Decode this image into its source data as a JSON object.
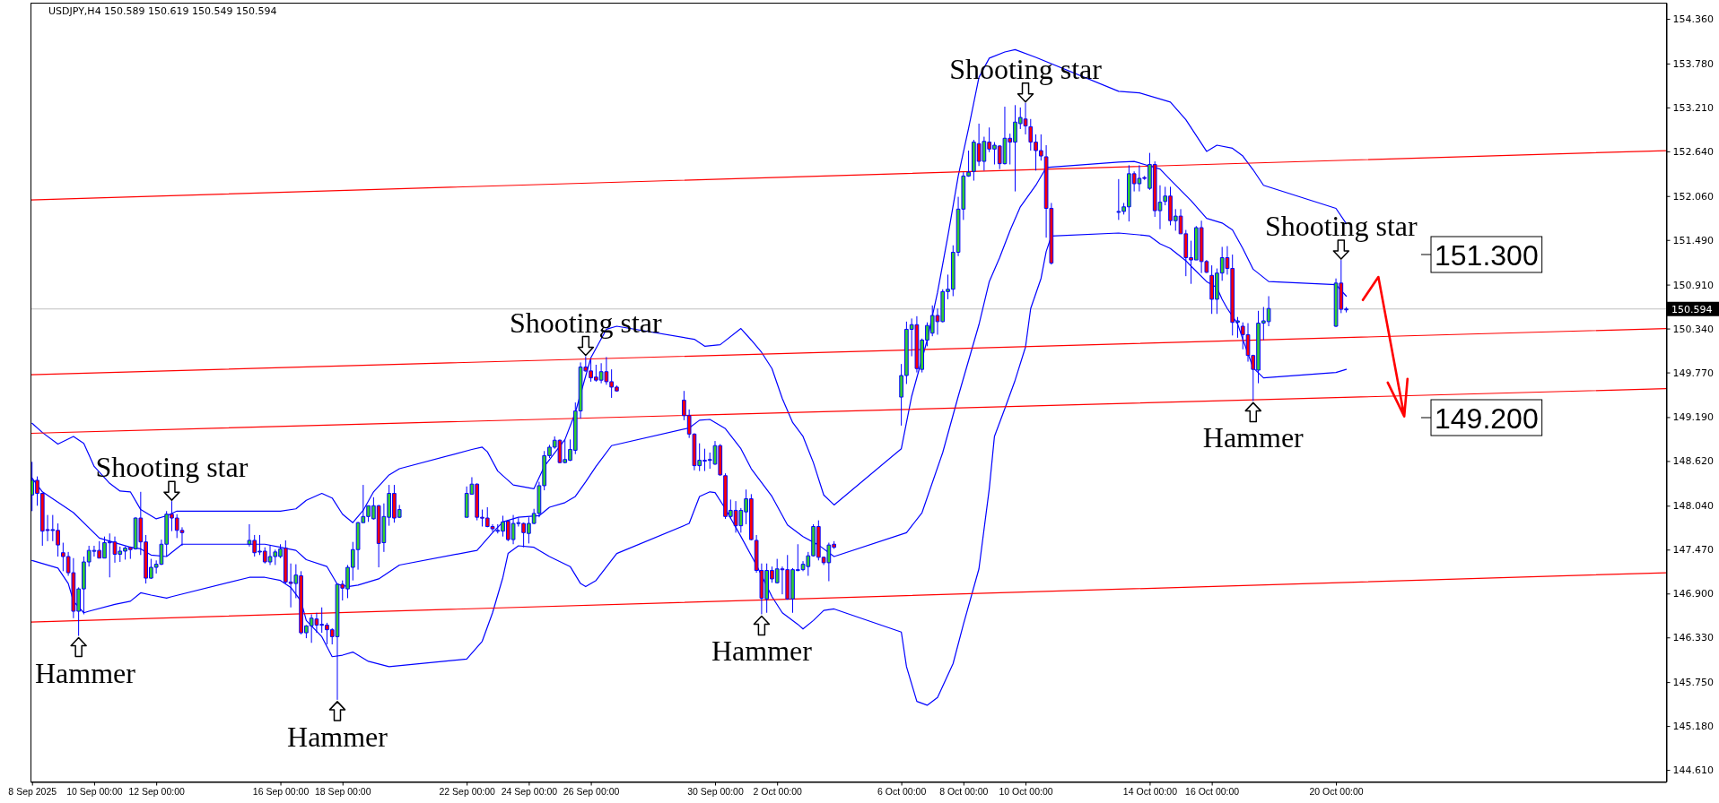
{
  "chart_data": {
    "type": "candlestick",
    "title": "USDJPY,H4 150.589 150.619 150.549 150.594",
    "color": "#0000ff",
    "x": [
      "2025-09-08T00:00",
      "2025-09-08T04:00",
      "2025-09-08T08:00",
      "2025-09-08T12:00",
      "2025-09-08T16:00",
      "2025-09-08T20:00",
      "2025-09-09T00:00",
      "2025-09-09T04:00",
      "2025-09-09T08:00",
      "2025-09-09T12:00",
      "2025-09-09T16:00",
      "2025-09-09T20:00",
      "2025-09-10T00:00",
      "2025-09-10T04:00",
      "2025-09-10T08:00",
      "2025-09-10T12:00",
      "2025-09-10T16:00",
      "2025-09-10T20:00",
      "2025-09-11T00:00",
      "2025-09-11T04:00",
      "2025-09-11T08:00",
      "2025-09-11T12:00",
      "2025-09-11T16:00",
      "2025-09-11T20:00",
      "2025-09-12T00:00",
      "2025-09-12T04:00",
      "2025-09-12T08:00",
      "2025-09-12T12:00",
      "2025-09-12T16:00",
      "2025-09-12T20:00",
      "2025-09-15T00:00",
      "2025-09-15T04:00",
      "2025-09-15T08:00",
      "2025-09-15T12:00",
      "2025-09-15T16:00",
      "2025-09-15T20:00",
      "2025-09-16T00:00",
      "2025-09-16T04:00",
      "2025-09-16T08:00",
      "2025-09-16T12:00",
      "2025-09-16T16:00",
      "2025-09-16T20:00",
      "2025-09-17T00:00",
      "2025-09-17T04:00",
      "2025-09-17T08:00",
      "2025-09-17T12:00",
      "2025-09-17T16:00",
      "2025-09-17T20:00",
      "2025-09-18T00:00",
      "2025-09-18T04:00",
      "2025-09-18T08:00",
      "2025-09-18T12:00",
      "2025-09-18T16:00",
      "2025-09-18T20:00",
      "2025-09-19T00:00",
      "2025-09-19T04:00",
      "2025-09-19T08:00",
      "2025-09-19T12:00",
      "2025-09-19T16:00",
      "2025-09-19T20:00",
      "2025-09-22T00:00",
      "2025-09-22T04:00",
      "2025-09-22T08:00",
      "2025-09-22T12:00",
      "2025-09-22T16:00",
      "2025-09-22T20:00",
      "2025-09-23T00:00",
      "2025-09-23T04:00",
      "2025-09-23T08:00",
      "2025-09-23T12:00",
      "2025-09-23T16:00",
      "2025-09-23T20:00",
      "2025-09-24T00:00",
      "2025-09-24T04:00",
      "2025-09-24T08:00",
      "2025-09-24T12:00",
      "2025-09-24T16:00",
      "2025-09-24T20:00",
      "2025-09-25T00:00",
      "2025-09-25T04:00",
      "2025-09-25T08:00",
      "2025-09-25T12:00",
      "2025-09-25T16:00",
      "2025-09-25T20:00",
      "2025-09-26T00:00",
      "2025-09-26T04:00",
      "2025-09-26T08:00",
      "2025-09-26T12:00",
      "2025-09-26T16:00",
      "2025-09-26T20:00",
      "2025-09-29T00:00",
      "2025-09-29T04:00",
      "2025-09-29T08:00",
      "2025-09-29T12:00",
      "2025-09-29T16:00",
      "2025-09-29T20:00",
      "2025-09-30T00:00",
      "2025-09-30T04:00",
      "2025-09-30T08:00",
      "2025-09-30T12:00",
      "2025-09-30T16:00",
      "2025-09-30T20:00",
      "2025-10-01T00:00",
      "2025-10-01T04:00",
      "2025-10-01T08:00",
      "2025-10-01T12:00",
      "2025-10-01T16:00",
      "2025-10-01T20:00",
      "2025-10-02T00:00",
      "2025-10-02T04:00",
      "2025-10-02T08:00",
      "2025-10-02T12:00",
      "2025-10-02T16:00",
      "2025-10-02T20:00",
      "2025-10-03T00:00",
      "2025-10-03T04:00",
      "2025-10-03T08:00",
      "2025-10-03T12:00",
      "2025-10-03T16:00",
      "2025-10-03T20:00",
      "2025-10-06T00:00",
      "2025-10-06T04:00",
      "2025-10-06T08:00",
      "2025-10-06T12:00",
      "2025-10-06T16:00",
      "2025-10-06T20:00",
      "2025-10-07T00:00",
      "2025-10-07T04:00",
      "2025-10-07T08:00",
      "2025-10-07T12:00",
      "2025-10-07T16:00",
      "2025-10-07T20:00",
      "2025-10-08T00:00",
      "2025-10-08T04:00",
      "2025-10-08T08:00",
      "2025-10-08T12:00",
      "2025-10-08T16:00",
      "2025-10-08T20:00",
      "2025-10-09T00:00",
      "2025-10-09T04:00",
      "2025-10-09T08:00",
      "2025-10-09T12:00",
      "2025-10-09T16:00",
      "2025-10-09T20:00",
      "2025-10-10T00:00",
      "2025-10-10T04:00",
      "2025-10-10T08:00",
      "2025-10-10T12:00",
      "2025-10-10T16:00",
      "2025-10-10T20:00",
      "2025-10-13T00:00",
      "2025-10-13T04:00",
      "2025-10-13T08:00",
      "2025-10-13T12:00",
      "2025-10-13T16:00",
      "2025-10-13T20:00",
      "2025-10-14T00:00",
      "2025-10-14T04:00",
      "2025-10-14T08:00",
      "2025-10-14T12:00",
      "2025-10-14T16:00",
      "2025-10-14T20:00",
      "2025-10-15T00:00",
      "2025-10-15T04:00",
      "2025-10-15T08:00",
      "2025-10-15T12:00",
      "2025-10-15T16:00",
      "2025-10-15T20:00",
      "2025-10-16T00:00",
      "2025-10-16T04:00",
      "2025-10-16T08:00",
      "2025-10-16T12:00",
      "2025-10-16T16:00",
      "2025-10-16T20:00",
      "2025-10-17T00:00",
      "2025-10-17T04:00",
      "2025-10-17T08:00",
      "2025-10-17T12:00",
      "2025-10-17T16:00",
      "2025-10-17T20:00",
      "2025-10-20T00:00",
      "2025-10-20T04:00",
      "2025-10-20T08:00"
    ],
    "ohlc": [
      [
        148.18,
        148.61,
        147.97,
        148.37
      ],
      [
        148.37,
        148.42,
        148.04,
        148.2
      ],
      [
        148.2,
        148.21,
        147.52,
        147.71
      ],
      [
        147.73,
        147.92,
        147.58,
        147.72
      ],
      [
        147.72,
        147.92,
        147.58,
        147.73
      ],
      [
        147.72,
        147.81,
        147.38,
        147.53
      ],
      [
        147.43,
        147.56,
        147.19,
        147.38
      ],
      [
        147.38,
        147.44,
        147.13,
        147.17
      ],
      [
        147.17,
        147.36,
        146.58,
        146.67
      ],
      [
        146.67,
        146.98,
        146.35,
        146.96
      ],
      [
        146.96,
        147.38,
        146.63,
        147.31
      ],
      [
        147.31,
        147.52,
        147.25,
        147.46
      ],
      [
        147.45,
        147.52,
        147.38,
        147.46
      ],
      [
        147.46,
        147.58,
        147.36,
        147.36
      ],
      [
        147.36,
        147.64,
        147.36,
        147.56
      ],
      [
        147.56,
        147.68,
        147.11,
        147.57
      ],
      [
        147.57,
        147.64,
        147.3,
        147.41
      ],
      [
        147.41,
        147.51,
        147.31,
        147.45
      ],
      [
        147.45,
        147.51,
        147.34,
        147.49
      ],
      [
        147.5,
        147.51,
        147.35,
        147.47
      ],
      [
        147.48,
        147.89,
        147.47,
        147.88
      ],
      [
        147.88,
        148.22,
        147.4,
        147.57
      ],
      [
        147.57,
        147.66,
        147.03,
        147.1
      ],
      [
        147.1,
        147.35,
        147.09,
        147.24
      ],
      [
        147.24,
        147.33,
        147.16,
        147.28
      ],
      [
        147.28,
        147.6,
        147.27,
        147.54
      ],
      [
        147.54,
        147.97,
        147.38,
        147.93
      ],
      [
        147.93,
        148.1,
        147.71,
        147.88
      ],
      [
        147.88,
        147.93,
        147.62,
        147.72
      ],
      [
        147.72,
        147.76,
        147.52,
        147.69
      ],
      [
        147.54,
        147.8,
        147.51,
        147.59
      ],
      [
        147.59,
        147.66,
        147.38,
        147.43
      ],
      [
        147.44,
        147.66,
        147.4,
        147.45
      ],
      [
        147.45,
        147.5,
        147.29,
        147.31
      ],
      [
        147.31,
        147.52,
        147.27,
        147.38
      ],
      [
        147.38,
        147.47,
        147.27,
        147.44
      ],
      [
        147.38,
        147.54,
        147.36,
        147.48
      ],
      [
        147.49,
        147.59,
        147.03,
        147.05
      ],
      [
        147.05,
        147.29,
        146.72,
        147.03
      ],
      [
        147.03,
        147.28,
        146.84,
        147.14
      ],
      [
        147.13,
        147.19,
        146.37,
        146.39
      ],
      [
        146.39,
        146.49,
        146.32,
        146.48
      ],
      [
        146.48,
        146.63,
        146.26,
        146.58
      ],
      [
        146.57,
        146.65,
        146.39,
        146.49
      ],
      [
        146.49,
        146.72,
        146.39,
        146.5
      ],
      [
        146.49,
        146.52,
        146.24,
        146.43
      ],
      [
        146.43,
        146.45,
        146.24,
        146.34
      ],
      [
        146.34,
        147.03,
        145.52,
        147.02
      ],
      [
        147.02,
        147.07,
        146.81,
        146.97
      ],
      [
        146.96,
        147.27,
        146.84,
        147.24
      ],
      [
        147.24,
        147.57,
        147.07,
        147.47
      ],
      [
        147.47,
        147.83,
        147.21,
        147.82
      ],
      [
        147.82,
        148.31,
        147.82,
        147.9
      ],
      [
        147.9,
        148.04,
        147.83,
        148.04
      ],
      [
        147.87,
        148.15,
        147.86,
        148.04
      ],
      [
        148.04,
        148.05,
        147.24,
        147.55
      ],
      [
        147.56,
        148.07,
        147.44,
        147.9
      ],
      [
        147.89,
        148.31,
        147.78,
        148.2
      ],
      [
        148.2,
        148.31,
        147.82,
        147.88
      ],
      [
        147.89,
        148.05,
        147.88,
        147.99
      ],
      [
        147.89,
        148.29,
        147.89,
        148.2
      ],
      [
        148.19,
        148.41,
        148.19,
        148.32
      ],
      [
        148.32,
        148.33,
        147.85,
        147.89
      ],
      [
        147.89,
        147.99,
        147.77,
        147.88
      ],
      [
        147.88,
        148.02,
        147.76,
        147.77
      ],
      [
        147.77,
        147.8,
        147.7,
        147.74
      ],
      [
        147.71,
        147.8,
        147.68,
        147.72
      ],
      [
        147.71,
        147.91,
        147.64,
        147.83
      ],
      [
        147.84,
        147.85,
        147.58,
        147.6
      ],
      [
        147.6,
        147.92,
        147.54,
        147.81
      ],
      [
        147.81,
        147.88,
        147.77,
        147.82
      ],
      [
        147.81,
        147.82,
        147.5,
        147.69
      ],
      [
        147.68,
        147.89,
        147.55,
        147.81
      ],
      [
        147.81,
        148,
        147.8,
        147.94
      ],
      [
        147.94,
        148.35,
        147.89,
        148.3
      ],
      [
        148.3,
        148.75,
        148.24,
        148.69
      ],
      [
        148.69,
        148.83,
        148.66,
        148.8
      ],
      [
        148.8,
        148.94,
        148.78,
        148.89
      ],
      [
        148.89,
        148.9,
        148.59,
        148.6
      ],
      [
        148.6,
        148.89,
        148.59,
        148.64
      ],
      [
        148.63,
        148.9,
        148.62,
        148.77
      ],
      [
        148.76,
        149.38,
        148.71,
        149.27
      ],
      [
        149.27,
        149.9,
        149.17,
        149.84
      ],
      [
        149.84,
        149.98,
        149.78,
        149.79
      ],
      [
        149.79,
        149.94,
        149.65,
        149.7
      ],
      [
        149.71,
        149.87,
        149.65,
        149.67
      ],
      [
        149.67,
        149.89,
        149.63,
        149.78
      ],
      [
        149.78,
        149.97,
        149.61,
        149.65
      ],
      [
        149.65,
        149.81,
        149.44,
        149.58
      ],
      [
        149.58,
        149.6,
        149.52,
        149.53
      ],
      [
        149.41,
        149.53,
        149.15,
        149.21
      ],
      [
        149.21,
        149.29,
        148.92,
        148.97
      ],
      [
        148.97,
        148.98,
        148.5,
        148.56
      ],
      [
        148.56,
        148.85,
        148.49,
        148.63
      ],
      [
        148.63,
        148.78,
        148.49,
        148.62
      ],
      [
        148.63,
        148.73,
        148.52,
        148.64
      ],
      [
        148.58,
        148.88,
        148.57,
        148.82
      ],
      [
        148.82,
        148.84,
        148.43,
        148.44
      ],
      [
        148.43,
        148.46,
        147.87,
        147.9
      ],
      [
        147.9,
        148.12,
        147.87,
        147.98
      ],
      [
        147.98,
        148.1,
        147.69,
        147.78
      ],
      [
        147.78,
        148.01,
        147.69,
        147.98
      ],
      [
        147.96,
        148.25,
        147.8,
        148.13
      ],
      [
        148.13,
        148.19,
        147.59,
        147.6
      ],
      [
        147.59,
        147.66,
        147.17,
        147.2
      ],
      [
        147.2,
        147.29,
        146.63,
        146.84
      ],
      [
        146.83,
        147.29,
        146.65,
        147.2
      ],
      [
        147.2,
        147.25,
        147.04,
        147.09
      ],
      [
        147.04,
        147.35,
        147.03,
        147.22
      ],
      [
        147.22,
        147.25,
        146.89,
        147.21
      ],
      [
        147.21,
        147.4,
        146.82,
        146.83
      ],
      [
        146.83,
        147.23,
        146.65,
        147.21
      ],
      [
        147.2,
        147.54,
        147.19,
        147.21
      ],
      [
        147.21,
        147.32,
        147.19,
        147.28
      ],
      [
        147.25,
        147.44,
        147.13,
        147.39
      ],
      [
        147.39,
        147.8,
        147.38,
        147.77
      ],
      [
        147.77,
        147.85,
        147.33,
        147.37
      ],
      [
        147.37,
        147.38,
        147.27,
        147.3
      ],
      [
        147.3,
        147.56,
        147.06,
        147.53
      ],
      [
        147.54,
        147.58,
        147.48,
        147.5
      ],
      [
        149.45,
        149.88,
        149.08,
        149.73
      ],
      [
        149.73,
        150.43,
        149.62,
        150.33
      ],
      [
        150.33,
        150.47,
        149.98,
        150.39
      ],
      [
        150.39,
        150.5,
        149.77,
        149.82
      ],
      [
        149.81,
        150.21,
        149.77,
        150.19
      ],
      [
        150.19,
        150.42,
        150.11,
        150.38
      ],
      [
        150.28,
        150.64,
        150.24,
        150.51
      ],
      [
        150.51,
        150.6,
        150.26,
        150.43
      ],
      [
        150.43,
        150.85,
        150.42,
        150.82
      ],
      [
        150.82,
        151.04,
        150.72,
        150.85
      ],
      [
        150.85,
        151.42,
        150.76,
        151.33
      ],
      [
        151.33,
        152.05,
        151.28,
        151.89
      ],
      [
        151.89,
        152.37,
        151.75,
        152.32
      ],
      [
        152.32,
        152.65,
        152.31,
        152.37
      ],
      [
        152.38,
        152.79,
        152.26,
        152.76
      ],
      [
        152.74,
        153,
        152.45,
        152.51
      ],
      [
        152.51,
        152.83,
        152.39,
        152.77
      ],
      [
        152.76,
        152.95,
        152.63,
        152.67
      ],
      [
        152.67,
        152.76,
        152.47,
        152.72
      ],
      [
        152.71,
        152.72,
        152.41,
        152.48
      ],
      [
        152.48,
        153.22,
        152.47,
        152.81
      ],
      [
        152.81,
        152.87,
        152.47,
        152.76
      ],
      [
        152.76,
        153.24,
        152.12,
        153.02
      ],
      [
        153,
        153.21,
        152.93,
        153.08
      ],
      [
        153.06,
        153.27,
        152.86,
        152.97
      ],
      [
        152.96,
        153.06,
        152.65,
        152.76
      ],
      [
        152.76,
        152.86,
        152.39,
        152.65
      ],
      [
        152.65,
        152.86,
        152.52,
        152.58
      ],
      [
        152.57,
        152.72,
        151.52,
        151.9
      ],
      [
        151.9,
        151.97,
        151.17,
        151.19
      ],
      [
        151.85,
        152.28,
        151.75,
        151.86
      ],
      [
        151.86,
        151.97,
        151.82,
        151.92
      ],
      [
        151.92,
        152.46,
        151.73,
        152.35
      ],
      [
        152.35,
        152.38,
        152.12,
        152.22
      ],
      [
        152.22,
        152.46,
        152.12,
        152.29
      ],
      [
        152.3,
        152.32,
        152.27,
        152.29
      ],
      [
        152.16,
        152.62,
        152.14,
        152.47
      ],
      [
        152.47,
        152.51,
        151.79,
        151.87
      ],
      [
        151.87,
        152.2,
        151.63,
        151.98
      ],
      [
        151.99,
        152.18,
        151.94,
        152.06
      ],
      [
        152.06,
        152.18,
        151.68,
        151.74
      ],
      [
        151.74,
        151.89,
        151.61,
        151.8
      ],
      [
        151.8,
        151.89,
        151.57,
        151.57
      ],
      [
        151.57,
        151.62,
        151.02,
        151.26
      ],
      [
        151.26,
        151.48,
        150.92,
        151.23
      ],
      [
        151.23,
        151.67,
        151.23,
        151.65
      ],
      [
        151.65,
        151.74,
        151.06,
        151.21
      ],
      [
        151.21,
        151.23,
        151.06,
        151.07
      ],
      [
        151.03,
        151.16,
        150.53,
        150.72
      ],
      [
        150.72,
        151.12,
        150.53,
        151.06
      ],
      [
        151.06,
        151.4,
        150.96,
        151.26
      ],
      [
        151.26,
        151.41,
        151.04,
        151.12
      ],
      [
        151.12,
        151.3,
        150.25,
        150.42
      ],
      [
        150.42,
        150.49,
        150.22,
        150.44
      ],
      [
        150.37,
        150.42,
        150.07,
        150.26
      ],
      [
        150.26,
        150.41,
        149.91,
        149.99
      ],
      [
        149.99,
        150,
        149.4,
        149.81
      ],
      [
        149.8,
        150.57,
        149.63,
        150.41
      ],
      [
        150.41,
        150.62,
        150.19,
        150.44
      ],
      [
        150.43,
        150.76,
        150.37,
        150.6
      ],
      [
        150.37,
        150.99,
        150.36,
        150.93
      ],
      [
        150.93,
        151.23,
        150.54,
        150.59
      ],
      [
        150.589,
        150.619,
        150.549,
        150.594
      ]
    ],
    "colors": [
      "#32cd32",
      "#ff0000",
      "#ff0000",
      "#ff0000",
      "#32cd32",
      "#ff0000",
      "#ff0000",
      "#ff0000",
      "#ff0000",
      "#32cd32",
      "#32cd32",
      "#32cd32",
      "#32cd32",
      "#ff0000",
      "#32cd32",
      "#32cd32",
      "#ff0000",
      "#32cd32",
      "#32cd32",
      "#ff0000",
      "#32cd32",
      "#ff0000",
      "#ff0000",
      "#32cd32",
      "#32cd32",
      "#32cd32",
      "#32cd32",
      "#ff0000",
      "#ff0000",
      "#ff0000",
      "#32cd32",
      "#ff0000",
      "#32cd32",
      "#ff0000",
      "#32cd32",
      "#32cd32",
      "#32cd32",
      "#ff0000",
      "#ff0000",
      "#32cd32",
      "#ff0000",
      "#32cd32",
      "#32cd32",
      "#ff0000",
      "#32cd32",
      "#ff0000",
      "#ff0000",
      "#32cd32",
      "#ff0000",
      "#32cd32",
      "#32cd32",
      "#32cd32",
      "#32cd32",
      "#32cd32",
      "#32cd32",
      "#ff0000",
      "#32cd32",
      "#32cd32",
      "#ff0000",
      "#32cd32",
      "#32cd32",
      "#32cd32",
      "#ff0000",
      "#ff0000",
      "#ff0000",
      "#ff0000",
      "#32cd32",
      "#32cd32",
      "#ff0000",
      "#32cd32",
      "#32cd32",
      "#ff0000",
      "#32cd32",
      "#32cd32",
      "#32cd32",
      "#32cd32",
      "#32cd32",
      "#32cd32",
      "#ff0000",
      "#32cd32",
      "#32cd32",
      "#32cd32",
      "#32cd32",
      "#ff0000",
      "#ff0000",
      "#ff0000",
      "#32cd32",
      "#ff0000",
      "#ff0000",
      "#ff0000",
      "#ff0000",
      "#ff0000",
      "#ff0000",
      "#32cd32",
      "#ff0000",
      "#32cd32",
      "#32cd32",
      "#ff0000",
      "#ff0000",
      "#32cd32",
      "#ff0000",
      "#32cd32",
      "#32cd32",
      "#ff0000",
      "#ff0000",
      "#ff0000",
      "#32cd32",
      "#ff0000",
      "#32cd32",
      "#ff0000",
      "#ff0000",
      "#32cd32",
      "#32cd32",
      "#32cd32",
      "#32cd32",
      "#32cd32",
      "#ff0000",
      "#ff0000",
      "#32cd32",
      "#ff0000",
      "#32cd32",
      "#32cd32",
      "#32cd32",
      "#ff0000",
      "#32cd32",
      "#32cd32",
      "#32cd32",
      "#ff0000",
      "#32cd32",
      "#32cd32",
      "#32cd32",
      "#32cd32",
      "#32cd32",
      "#32cd32",
      "#32cd32",
      "#ff0000",
      "#32cd32",
      "#ff0000",
      "#32cd32",
      "#ff0000",
      "#32cd32",
      "#ff0000",
      "#32cd32",
      "#32cd32",
      "#ff0000",
      "#ff0000",
      "#ff0000",
      "#ff0000",
      "#ff0000",
      "#ff0000",
      "#32cd32",
      "#32cd32",
      "#32cd32",
      "#ff0000",
      "#32cd32",
      "#ff0000",
      "#32cd32",
      "#ff0000",
      "#32cd32",
      "#32cd32",
      "#ff0000",
      "#32cd32",
      "#ff0000",
      "#ff0000",
      "#ff0000",
      "#32cd32",
      "#ff0000",
      "#ff0000",
      "#ff0000",
      "#32cd32",
      "#32cd32",
      "#ff0000",
      "#ff0000",
      "#32cd32",
      "#ff0000",
      "#ff0000",
      "#ff0000",
      "#32cd32",
      "#32cd32",
      "#32cd32",
      "#32cd32",
      "#ff0000",
      "#32cd32"
    ],
    "series": [
      {
        "type": "line",
        "color": "#0000ff",
        "x": [
          "2025-09-08T00:00",
          "2025-09-08T08:00",
          "2025-09-08T20:00",
          "2025-09-09T08:00",
          "2025-09-09T16:00",
          "2025-09-10T00:00",
          "2025-09-10T12:00",
          "2025-09-10T20:00",
          "2025-09-11T04:00",
          "2025-09-11T12:00",
          "2025-09-12T00:00",
          "2025-09-12T08:00",
          "2025-09-12T16:00",
          "2025-09-16T00:00",
          "2025-09-16T12:00",
          "2025-09-16T20:00",
          "2025-09-17T08:00",
          "2025-09-17T16:00",
          "2025-09-18T00:00",
          "2025-09-18T08:00",
          "2025-09-18T16:00",
          "2025-09-19T00:00",
          "2025-09-19T12:00",
          "2025-09-19T20:00",
          "2025-09-22T04:00",
          "2025-09-22T12:00",
          "2025-09-22T16:00",
          "2025-09-23T00:00",
          "2025-09-23T12:00",
          "2025-09-24T04:00",
          "2025-09-24T12:00",
          "2025-09-25T04:00",
          "2025-09-25T12:00",
          "2025-09-26T00:00",
          "2025-09-26T12:00",
          "2025-09-26T20:00",
          "2025-09-29T08:00",
          "2025-09-29T16:00",
          "2025-09-30T04:00",
          "2025-09-30T20:00",
          "2025-10-01T04:00",
          "2025-10-01T12:00",
          "2025-10-01T20:00",
          "2025-10-02T04:00",
          "2025-10-02T12:00",
          "2025-10-02T20:00",
          "2025-10-03T04:00",
          "2025-10-03T12:00",
          "2025-10-03T20:00",
          "2025-10-06T00:00",
          "2025-10-06T08:00",
          "2025-10-06T20:00",
          "2025-10-07T04:00",
          "2025-10-07T12:00",
          "2025-10-07T20:00",
          "2025-10-08T04:00",
          "2025-10-08T12:00",
          "2025-10-08T20:00",
          "2025-10-09T08:00",
          "2025-10-09T16:00",
          "2025-10-10T08:00",
          "2025-10-13T00:00",
          "2025-10-13T16:00",
          "2025-10-14T16:00",
          "2025-10-15T04:00",
          "2025-10-15T20:00",
          "2025-10-16T04:00",
          "2025-10-16T16:00",
          "2025-10-17T00:00",
          "2025-10-17T08:00",
          "2025-10-17T16:00",
          "2025-10-20T00:00",
          "2025-10-20T08:00"
        ],
        "values": [
          149.11,
          148.99,
          148.84,
          148.94,
          148.85,
          148.55,
          148.33,
          148.23,
          148.22,
          147.99,
          147.87,
          147.91,
          147.97,
          147.97,
          148.0,
          148.11,
          148.2,
          148.14,
          147.93,
          147.82,
          147.98,
          148.22,
          148.44,
          148.52,
          148.77,
          148.8,
          148.74,
          148.49,
          148.31,
          148.26,
          148.55,
          148.9,
          149.25,
          149.96,
          150.33,
          150.37,
          150.2,
          150.11,
          150.13,
          150.34,
          150.19,
          150.03,
          149.82,
          149.43,
          149.12,
          148.94,
          148.6,
          148.18,
          148.05,
          148.78,
          149.46,
          150.19,
          150.81,
          151.54,
          152.32,
          152.94,
          153.6,
          153.85,
          153.93,
          153.96,
          153.86,
          153.42,
          153.4,
          153.28,
          153.05,
          152.64,
          152.72,
          152.68,
          152.58,
          152.4,
          152.2,
          151.9,
          151.7
        ]
      },
      {
        "type": "line",
        "color": "#0000ff",
        "x": [
          "2025-09-08T00:00",
          "2025-09-08T08:00",
          "2025-09-09T08:00",
          "2025-09-10T04:00",
          "2025-09-11T04:00",
          "2025-09-11T12:00",
          "2025-09-11T20:00",
          "2025-09-12T08:00",
          "2025-09-12T20:00",
          "2025-09-15T12:00",
          "2025-09-16T00:00",
          "2025-09-16T12:00",
          "2025-09-16T20:00",
          "2025-09-17T12:00",
          "2025-09-17T20:00",
          "2025-09-18T04:00",
          "2025-09-18T12:00",
          "2025-09-19T04:00",
          "2025-09-19T20:00",
          "2025-09-22T08:00",
          "2025-09-22T20:00",
          "2025-09-23T04:00",
          "2025-09-23T16:00",
          "2025-09-24T08:00",
          "2025-09-24T16:00",
          "2025-09-25T04:00",
          "2025-09-25T12:00",
          "2025-09-25T20:00",
          "2025-09-26T04:00",
          "2025-09-26T16:00",
          "2025-09-29T04:00",
          "2025-09-29T12:00",
          "2025-09-29T20:00",
          "2025-09-30T08:00",
          "2025-09-30T20:00",
          "2025-10-01T04:00",
          "2025-10-01T20:00",
          "2025-10-02T08:00",
          "2025-10-02T20:00",
          "2025-10-03T08:00",
          "2025-10-03T20:00",
          "2025-10-06T04:00",
          "2025-10-06T16:00",
          "2025-10-07T08:00",
          "2025-10-07T20:00",
          "2025-10-08T12:00",
          "2025-10-08T20:00",
          "2025-10-09T04:00",
          "2025-10-09T12:00",
          "2025-10-09T20:00",
          "2025-10-10T08:00",
          "2025-10-10T16:00",
          "2025-10-13T00:00",
          "2025-10-13T12:00",
          "2025-10-14T00:00",
          "2025-10-14T08:00",
          "2025-10-14T16:00",
          "2025-10-15T08:00",
          "2025-10-15T20:00",
          "2025-10-16T08:00",
          "2025-10-16T16:00",
          "2025-10-17T00:00",
          "2025-10-17T08:00",
          "2025-10-17T20:00",
          "2025-10-20T00:00",
          "2025-10-20T08:00"
        ],
        "values": [
          148.4,
          148.22,
          147.95,
          147.62,
          147.5,
          147.48,
          147.4,
          147.38,
          147.54,
          147.54,
          147.5,
          147.46,
          147.34,
          147.25,
          147.02,
          146.99,
          147.01,
          147.09,
          147.27,
          147.46,
          147.69,
          147.83,
          147.89,
          147.91,
          148.02,
          148.08,
          148.16,
          148.35,
          148.55,
          148.82,
          149.05,
          149.15,
          149.16,
          149.04,
          148.78,
          148.52,
          148.16,
          147.79,
          147.64,
          147.53,
          147.38,
          147.69,
          147.95,
          148.73,
          149.46,
          150.39,
          150.95,
          151.26,
          151.61,
          151.92,
          152.2,
          152.43,
          152.5,
          152.51,
          152.45,
          152.41,
          152.27,
          152.0,
          151.77,
          151.71,
          151.62,
          151.38,
          151.11,
          150.95,
          150.91,
          150.76
        ]
      },
      {
        "type": "line",
        "color": "#0000ff",
        "x": [
          "2025-09-08T00:00",
          "2025-09-08T20:00",
          "2025-09-09T04:00",
          "2025-09-09T08:00",
          "2025-09-09T16:00",
          "2025-09-09T20:00",
          "2025-09-10T16:00",
          "2025-09-11T04:00",
          "2025-09-11T12:00",
          "2025-09-11T20:00",
          "2025-09-12T08:00",
          "2025-09-12T12:00",
          "2025-09-15T00:00",
          "2025-09-15T12:00",
          "2025-09-16T00:00",
          "2025-09-16T08:00",
          "2025-09-16T16:00",
          "2025-09-16T20:00",
          "2025-09-17T08:00",
          "2025-09-17T16:00",
          "2025-09-18T00:00",
          "2025-09-18T08:00",
          "2025-09-18T20:00",
          "2025-09-19T12:00",
          "2025-09-22T00:00",
          "2025-09-22T12:00",
          "2025-09-22T20:00",
          "2025-09-23T04:00",
          "2025-09-23T08:00",
          "2025-09-23T16:00",
          "2025-09-24T04:00",
          "2025-09-24T16:00",
          "2025-09-25T08:00",
          "2025-09-25T16:00",
          "2025-09-25T20:00",
          "2025-09-26T04:00",
          "2025-09-26T20:00",
          "2025-09-29T04:00",
          "2025-09-29T12:00",
          "2025-09-29T20:00",
          "2025-09-30T00:00",
          "2025-09-30T08:00",
          "2025-09-30T20:00",
          "2025-10-01T08:00",
          "2025-10-01T20:00",
          "2025-10-02T04:00",
          "2025-10-02T16:00",
          "2025-10-02T20:00",
          "2025-10-03T04:00",
          "2025-10-03T12:00",
          "2025-10-03T20:00",
          "2025-10-06T00:00",
          "2025-10-06T04:00",
          "2025-10-06T12:00",
          "2025-10-06T20:00",
          "2025-10-07T04:00",
          "2025-10-07T16:00",
          "2025-10-08T00:00",
          "2025-10-08T12:00",
          "2025-10-08T20:00",
          "2025-10-09T00:00",
          "2025-10-09T08:00",
          "2025-10-09T16:00",
          "2025-10-10T00:00",
          "2025-10-10T04:00",
          "2025-10-10T12:00",
          "2025-10-10T16:00",
          "2025-10-10T20:00",
          "2025-10-13T00:00",
          "2025-10-13T20:00",
          "2025-10-14T00:00",
          "2025-10-14T08:00",
          "2025-10-14T16:00",
          "2025-10-15T04:00",
          "2025-10-15T08:00",
          "2025-10-15T20:00",
          "2025-10-16T04:00",
          "2025-10-16T08:00",
          "2025-10-16T12:00",
          "2025-10-16T20:00",
          "2025-10-17T00:00",
          "2025-10-17T08:00",
          "2025-10-17T16:00",
          "2025-10-20T00:00",
          "2025-10-20T08:00"
        ],
        "values": [
          147.33,
          147.23,
          147.03,
          146.8,
          146.65,
          146.67,
          146.76,
          146.8,
          146.91,
          146.88,
          146.84,
          146.86,
          147.11,
          147.11,
          147.07,
          146.98,
          146.8,
          146.55,
          146.34,
          146.08,
          146.1,
          146.14,
          146.02,
          145.95,
          146.05,
          146.28,
          146.65,
          147.11,
          147.42,
          147.52,
          147.5,
          147.38,
          147.25,
          147.03,
          146.99,
          147.07,
          147.42,
          147.81,
          148.16,
          148.22,
          148.21,
          148.0,
          147.64,
          147.27,
          146.86,
          146.65,
          146.5,
          146.44,
          146.55,
          146.68,
          146.7,
          146.4,
          145.95,
          145.5,
          145.45,
          145.55,
          145.99,
          146.5,
          147.22,
          148.26,
          148.94,
          149.3,
          149.67,
          150.1,
          150.6,
          150.99,
          151.34,
          151.54,
          151.58,
          151.55,
          151.54,
          151.44,
          151.38,
          151.22,
          151.15,
          150.95,
          150.87,
          150.72,
          150.6,
          150.4,
          150.2,
          149.83,
          149.7,
          149.77,
          149.81
        ]
      },
      {
        "type": "line",
        "color": "#ff0000",
        "x": [
          "2025-09-07T22:48",
          "2025-10-30T15:12"
        ],
        "values": [
          152.01,
          152.65
        ]
      },
      {
        "type": "line",
        "color": "#ff0000",
        "x": [
          "2025-09-07T22:48",
          "2025-10-30T15:12"
        ],
        "values": [
          149.74,
          150.34
        ]
      },
      {
        "type": "line",
        "color": "#ff0000",
        "x": [
          "2025-09-07T22:48",
          "2025-10-30T15:12"
        ],
        "values": [
          148.98,
          149.56
        ]
      },
      {
        "type": "line",
        "color": "#ff0000",
        "x": [
          "2025-09-07T22:48",
          "2025-10-30T15:12"
        ],
        "values": [
          146.53,
          147.17
        ]
      },
      {
        "type": "line",
        "color": "#ff0000",
        "x": [
          "2025-10-20T20:48",
          "2025-10-21T08:48",
          "2025-10-22T04:48"
        ],
        "values": [
          150.71,
          151.01,
          149.2
        ]
      }
    ],
    "xlim": [
      "2025-09-07T22:48",
      "2025-10-30T15:12"
    ],
    "xticks": [
      {
        "value": "2025-09-08T00:00",
        "label": "8 Sep 2025"
      },
      {
        "value": "2025-09-10T00:00",
        "label": "10 Sep 00:00"
      },
      {
        "value": "2025-09-12T00:00",
        "label": "12 Sep 00:00"
      },
      {
        "value": "2025-09-16T00:00",
        "label": "16 Sep 00:00"
      },
      {
        "value": "2025-09-18T00:00",
        "label": "18 Sep 00:00"
      },
      {
        "value": "2025-09-22T00:00",
        "label": "22 Sep 00:00"
      },
      {
        "value": "2025-09-24T00:00",
        "label": "24 Sep 00:00"
      },
      {
        "value": "2025-09-26T00:00",
        "label": "26 Sep 00:00"
      },
      {
        "value": "2025-09-30T00:00",
        "label": "30 Sep 00:00"
      },
      {
        "value": "2025-10-02T00:00",
        "label": "2 Oct 00:00"
      },
      {
        "value": "2025-10-06T00:00",
        "label": "6 Oct 00:00"
      },
      {
        "value": "2025-10-08T00:00",
        "label": "8 Oct 00:00"
      },
      {
        "value": "2025-10-10T00:00",
        "label": "10 Oct 00:00"
      },
      {
        "value": "2025-10-14T00:00",
        "label": "14 Oct 00:00"
      },
      {
        "value": "2025-10-16T00:00",
        "label": "16 Oct 00:00"
      },
      {
        "value": "2025-10-20T00:00",
        "label": "20 Oct 00:00"
      }
    ],
    "ylim": [
      144.46,
      154.57
    ],
    "yticks": [
      {
        "value": 154.36,
        "label": "154.360"
      },
      {
        "value": 153.78,
        "label": "153.780"
      },
      {
        "value": 153.21,
        "label": "153.210"
      },
      {
        "value": 152.64,
        "label": "152.640"
      },
      {
        "value": 152.06,
        "label": "152.060"
      },
      {
        "value": 151.49,
        "label": "151.490"
      },
      {
        "value": 150.91,
        "label": "150.910"
      },
      {
        "value": 150.34,
        "label": "150.340"
      },
      {
        "value": 149.77,
        "label": "149.770"
      },
      {
        "value": 149.19,
        "label": "149.190"
      },
      {
        "value": 148.62,
        "label": "148.620"
      },
      {
        "value": 148.04,
        "label": "148.040"
      },
      {
        "value": 147.47,
        "label": "147.470"
      },
      {
        "value": 146.9,
        "label": "146.900"
      },
      {
        "value": 146.33,
        "label": "146.330"
      },
      {
        "value": 145.75,
        "label": "145.750"
      },
      {
        "value": 145.18,
        "label": "145.180"
      },
      {
        "value": 144.61,
        "label": "144.610"
      }
    ],
    "ref_lines": [
      {
        "axis": "y",
        "value": 150.594,
        "label": "150.594",
        "color": "#c0c0c0"
      }
    ],
    "annotations": [
      {
        "text": "Hammer",
        "x": "2025-09-09T12:00",
        "y": 146.35
      },
      {
        "text": "Shooting star",
        "x": "2025-09-12T12:00",
        "y": 148.1
      },
      {
        "text": "Hammer",
        "x": "2025-09-17T20:00",
        "y": 145.52
      },
      {
        "text": "Shooting star",
        "x": "2025-09-25T20:00",
        "y": 149.98
      },
      {
        "text": "Hammer",
        "x": "2025-10-01T12:00",
        "y": 146.63
      },
      {
        "text": "Shooting star",
        "x": "2025-10-10T00:00",
        "y": 153.27
      },
      {
        "text": "Hammer",
        "x": "2025-10-17T08:00",
        "y": 149.4
      },
      {
        "text": "Shooting star",
        "x": "2025-10-20T04:00",
        "y": 151.23
      },
      "151.300",
      "149.200"
    ]
  }
}
